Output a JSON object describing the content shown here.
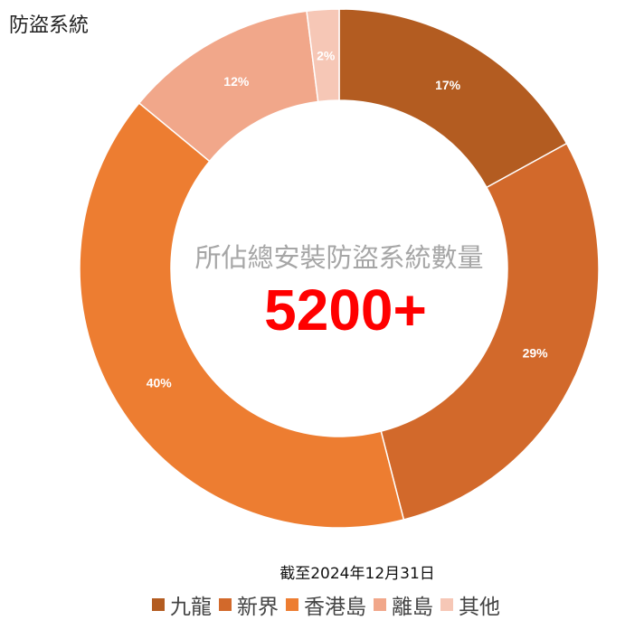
{
  "title": "防盜系統",
  "center": {
    "caption": "所佔總安裝防盜系統數量",
    "value": "5200+"
  },
  "footnote": "截至2024年12月31日",
  "chart_data": {
    "type": "pie",
    "style": "donut",
    "categories": [
      "九龍",
      "新界",
      "香港島",
      "離島",
      "其他"
    ],
    "values": [
      17,
      29,
      40,
      12,
      2
    ],
    "labels": [
      "17%",
      "29%",
      "40%",
      "12%",
      "2%"
    ],
    "colors": [
      "#b35c21",
      "#d2692b",
      "#ed7d31",
      "#f1a78a",
      "#f6c7b6"
    ],
    "legend_position": "bottom"
  }
}
